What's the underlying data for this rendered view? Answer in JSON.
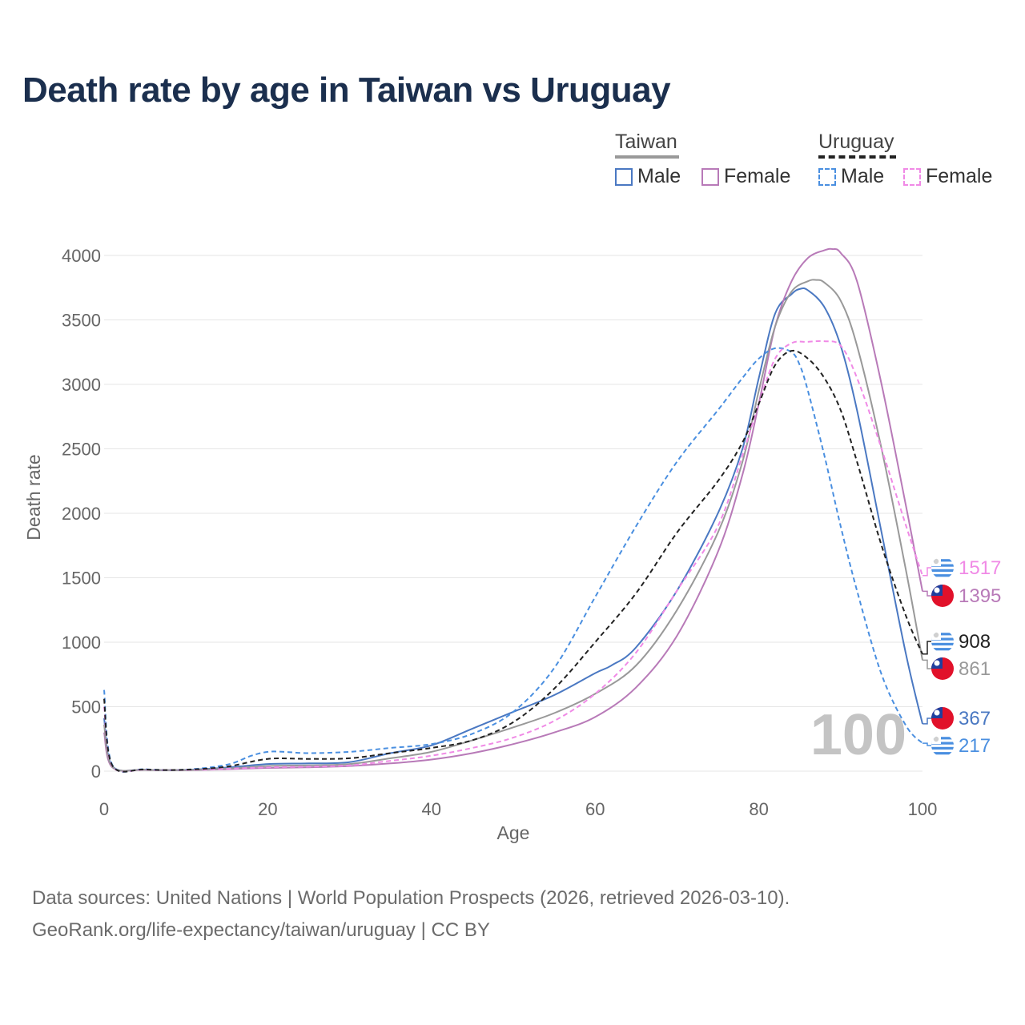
{
  "title": "Death rate by age in Taiwan vs Uruguay",
  "legend": {
    "groups": [
      {
        "name": "Taiwan",
        "dash": "solid"
      },
      {
        "name": "Uruguay",
        "dash": "dashed"
      }
    ],
    "items": [
      {
        "label": "Male",
        "color": "#4a78c2",
        "dash": "solid"
      },
      {
        "label": "Female",
        "color": "#b87ab8",
        "dash": "solid"
      },
      {
        "label": "Male",
        "color": "#4a8fe0",
        "dash": "dashed"
      },
      {
        "label": "Female",
        "color": "#f08ae6",
        "dash": "dashed"
      }
    ]
  },
  "chart_data": {
    "type": "line",
    "xlabel": "Age",
    "ylabel": "Death rate",
    "xlim": [
      0,
      100
    ],
    "ylim": [
      0,
      4000
    ],
    "xticks": [
      0,
      20,
      40,
      60,
      80,
      100
    ],
    "yticks": [
      0,
      500,
      1000,
      1500,
      2000,
      2500,
      3000,
      3500,
      4000
    ],
    "watermark": "100",
    "series": [
      {
        "name": "Taiwan Male",
        "color": "#4a78c2",
        "dash": "solid",
        "x": [
          0,
          1,
          5,
          10,
          15,
          20,
          25,
          30,
          35,
          40,
          45,
          50,
          55,
          60,
          62,
          65,
          70,
          75,
          78,
          80,
          82,
          84,
          85,
          86,
          88,
          90,
          92,
          95,
          98,
          100
        ],
        "y": [
          410,
          40,
          12,
          10,
          28,
          55,
          60,
          70,
          140,
          200,
          330,
          460,
          590,
          760,
          820,
          960,
          1400,
          2000,
          2500,
          3050,
          3550,
          3700,
          3740,
          3730,
          3600,
          3300,
          2800,
          1850,
          900,
          367
        ]
      },
      {
        "name": "Taiwan Female",
        "color": "#b87ab8",
        "dash": "solid",
        "x": [
          0,
          1,
          5,
          10,
          15,
          20,
          25,
          30,
          35,
          40,
          45,
          50,
          55,
          60,
          65,
          70,
          75,
          78,
          80,
          82,
          84,
          86,
          88,
          89,
          90,
          92,
          95,
          98,
          100
        ],
        "y": [
          300,
          30,
          10,
          8,
          15,
          25,
          30,
          40,
          60,
          90,
          140,
          210,
          300,
          420,
          650,
          1050,
          1700,
          2300,
          2850,
          3450,
          3800,
          3980,
          4040,
          4050,
          4020,
          3800,
          3000,
          2050,
          1395
        ]
      },
      {
        "name": "Taiwan Total",
        "color": "#999999",
        "dash": "solid",
        "x": [
          0,
          1,
          5,
          10,
          15,
          20,
          25,
          30,
          35,
          40,
          45,
          50,
          55,
          60,
          65,
          70,
          75,
          78,
          80,
          82,
          84,
          86,
          87,
          88,
          90,
          92,
          95,
          98,
          100
        ],
        "y": [
          360,
          35,
          11,
          9,
          20,
          40,
          45,
          55,
          100,
          150,
          240,
          340,
          450,
          600,
          820,
          1250,
          1850,
          2400,
          2950,
          3450,
          3720,
          3800,
          3810,
          3790,
          3650,
          3300,
          2500,
          1550,
          861
        ]
      },
      {
        "name": "Uruguay Male",
        "color": "#4a8fe0",
        "dash": "dashed",
        "x": [
          0,
          1,
          5,
          10,
          15,
          18,
          20,
          22,
          25,
          30,
          35,
          40,
          45,
          50,
          55,
          60,
          65,
          70,
          75,
          78,
          80,
          82,
          84,
          85,
          86,
          88,
          90,
          92,
          95,
          98,
          100
        ],
        "y": [
          630,
          50,
          15,
          12,
          50,
          120,
          150,
          150,
          140,
          150,
          180,
          210,
          290,
          460,
          800,
          1350,
          1900,
          2400,
          2800,
          3050,
          3200,
          3280,
          3250,
          3150,
          2950,
          2450,
          1900,
          1400,
          750,
          350,
          217
        ]
      },
      {
        "name": "Uruguay Female",
        "color": "#f08ae6",
        "dash": "dashed",
        "x": [
          0,
          1,
          5,
          10,
          15,
          20,
          25,
          30,
          35,
          40,
          45,
          50,
          55,
          60,
          65,
          70,
          75,
          78,
          80,
          82,
          84,
          86,
          88,
          90,
          92,
          95,
          98,
          100
        ],
        "y": [
          500,
          40,
          12,
          10,
          18,
          30,
          35,
          45,
          80,
          120,
          180,
          260,
          390,
          600,
          920,
          1400,
          1900,
          2450,
          2850,
          3200,
          3320,
          3330,
          3335,
          3300,
          3050,
          2500,
          1900,
          1517
        ]
      },
      {
        "name": "Uruguay Total",
        "color": "#222222",
        "dash": "dashed",
        "x": [
          0,
          1,
          5,
          10,
          15,
          20,
          25,
          30,
          35,
          40,
          45,
          50,
          55,
          60,
          65,
          70,
          75,
          78,
          80,
          82,
          84,
          86,
          88,
          90,
          92,
          95,
          98,
          100
        ],
        "y": [
          560,
          45,
          13,
          11,
          35,
          95,
          95,
          100,
          140,
          180,
          240,
          380,
          640,
          1000,
          1380,
          1850,
          2250,
          2550,
          2850,
          3150,
          3260,
          3200,
          3050,
          2800,
          2400,
          1750,
          1200,
          908
        ]
      }
    ],
    "end_labels": [
      {
        "value": "1517",
        "color": "#f08ae6",
        "flag": "uruguay"
      },
      {
        "value": "1395",
        "color": "#b87ab8",
        "flag": "taiwan"
      },
      {
        "value": "908",
        "color": "#222222",
        "flag": "uruguay"
      },
      {
        "value": "861",
        "color": "#999999",
        "flag": "taiwan"
      },
      {
        "value": "367",
        "color": "#4a78c2",
        "flag": "taiwan"
      },
      {
        "value": "217",
        "color": "#4a8fe0",
        "flag": "uruguay"
      }
    ]
  },
  "footer": {
    "line1": "Data sources: United Nations | World Population Prospects (2026, retrieved 2026-03-10).",
    "line2": "GeoRank.org/life-expectancy/taiwan/uruguay | CC BY"
  }
}
